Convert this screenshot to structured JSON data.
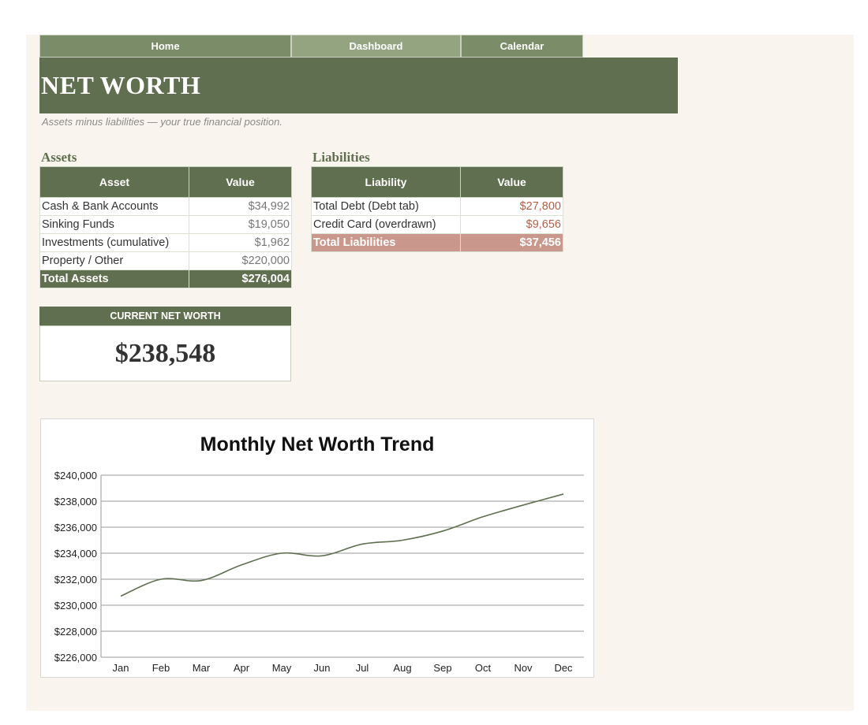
{
  "nav": {
    "home": "Home",
    "dashboard": "Dashboard",
    "calendar": "Calendar"
  },
  "header": {
    "title": "NET WORTH",
    "subtitle": "Assets minus liabilities — your true financial position."
  },
  "assets": {
    "heading": "Assets",
    "col_asset": "Asset",
    "col_value": "Value",
    "rows": [
      {
        "label": "Cash & Bank Accounts",
        "value": "$34,992"
      },
      {
        "label": "Sinking Funds",
        "value": "$19,050"
      },
      {
        "label": "Investments (cumulative)",
        "value": "$1,962"
      },
      {
        "label": "Property / Other",
        "value": "$220,000"
      }
    ],
    "total_label": "Total Assets",
    "total_value": "$276,004"
  },
  "liabilities": {
    "heading": "Liabilities",
    "col_liability": "Liability",
    "col_value": "Value",
    "rows": [
      {
        "label": "Total Debt (Debt tab)",
        "value": "$27,800"
      },
      {
        "label": "Credit Card (overdrawn)",
        "value": "$9,656"
      }
    ],
    "total_label": "Total Liabilities",
    "total_value": "$37,456"
  },
  "net_worth": {
    "label": "CURRENT NET WORTH",
    "value": "$238,548"
  },
  "colors": {
    "accent": "#5f6f4f",
    "nav_active": "#95a480",
    "liability_text": "#b0604a",
    "liability_total": "#c9978b",
    "line": "#5f6f4f"
  },
  "chart_data": {
    "type": "line",
    "title": "Monthly Net Worth Trend",
    "categories": [
      "Jan",
      "Feb",
      "Mar",
      "Apr",
      "May",
      "Jun",
      "Jul",
      "Aug",
      "Sep",
      "Oct",
      "Nov",
      "Dec"
    ],
    "series": [
      {
        "values": [
          230700,
          232000,
          231900,
          233100,
          234000,
          233800,
          234700,
          235000,
          235700,
          236800,
          237700,
          238548
        ]
      }
    ],
    "ylim": [
      226000,
      240000
    ],
    "yticks": [
      "$226,000",
      "$228,000",
      "$230,000",
      "$232,000",
      "$234,000",
      "$236,000",
      "$238,000",
      "$240,000"
    ],
    "grid": true,
    "legend": "none"
  }
}
